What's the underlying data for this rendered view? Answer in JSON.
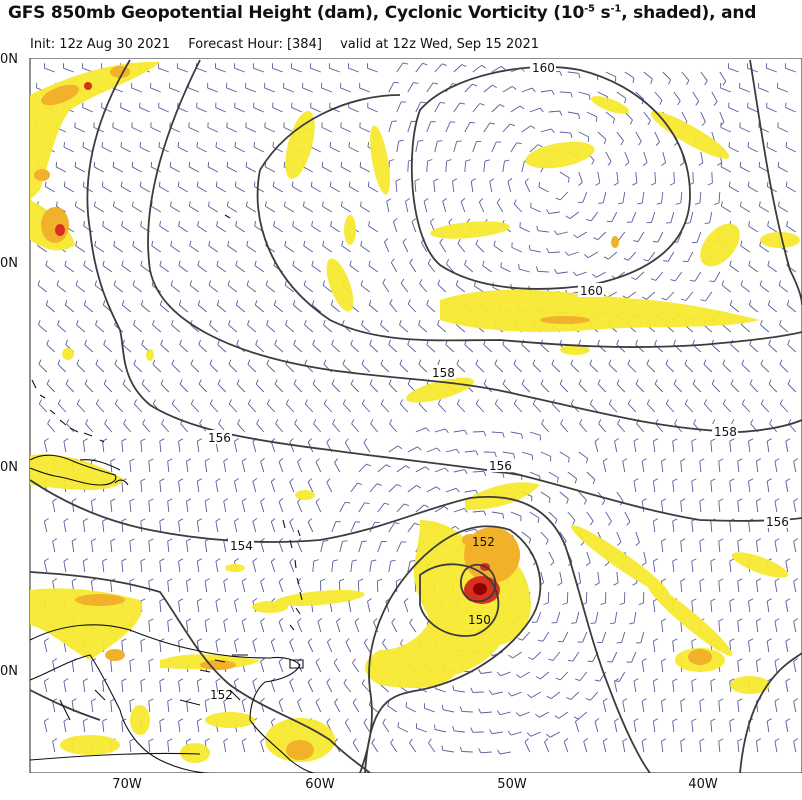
{
  "header": {
    "title": "GFS 850mb Geopotential Height (dam), Cyclonic Vorticity (10",
    "title_exp": "-5",
    "title_rest": " s",
    "title_exp2": "-1",
    "title_end": ", shaded), and",
    "init": "Init: 12z Aug 30 2021",
    "forecast_hour": "Forecast Hour: [384]",
    "valid": "valid at 12z Wed, Sep 15 2021"
  },
  "lat_labels": [
    "0N",
    "0N",
    "0N",
    "0N"
  ],
  "lon_labels": [
    "70W",
    "60W",
    "50W",
    "40W"
  ],
  "contours": {
    "c160a": "160",
    "c160b": "160",
    "c158a": "158",
    "c158b": "158",
    "c156a": "156",
    "c156b": "156",
    "c156c": "156",
    "c154": "154",
    "c152a": "152",
    "c150": "150",
    "c152b": "152"
  },
  "colors": {
    "vort_low": "#f7e930",
    "vort_mid": "#f2b12a",
    "vort_high": "#d8301f",
    "vort_core": "#8b0000",
    "contour": "#3c3c3c",
    "barb": "#5c5a9e",
    "coast": "#111111"
  }
}
